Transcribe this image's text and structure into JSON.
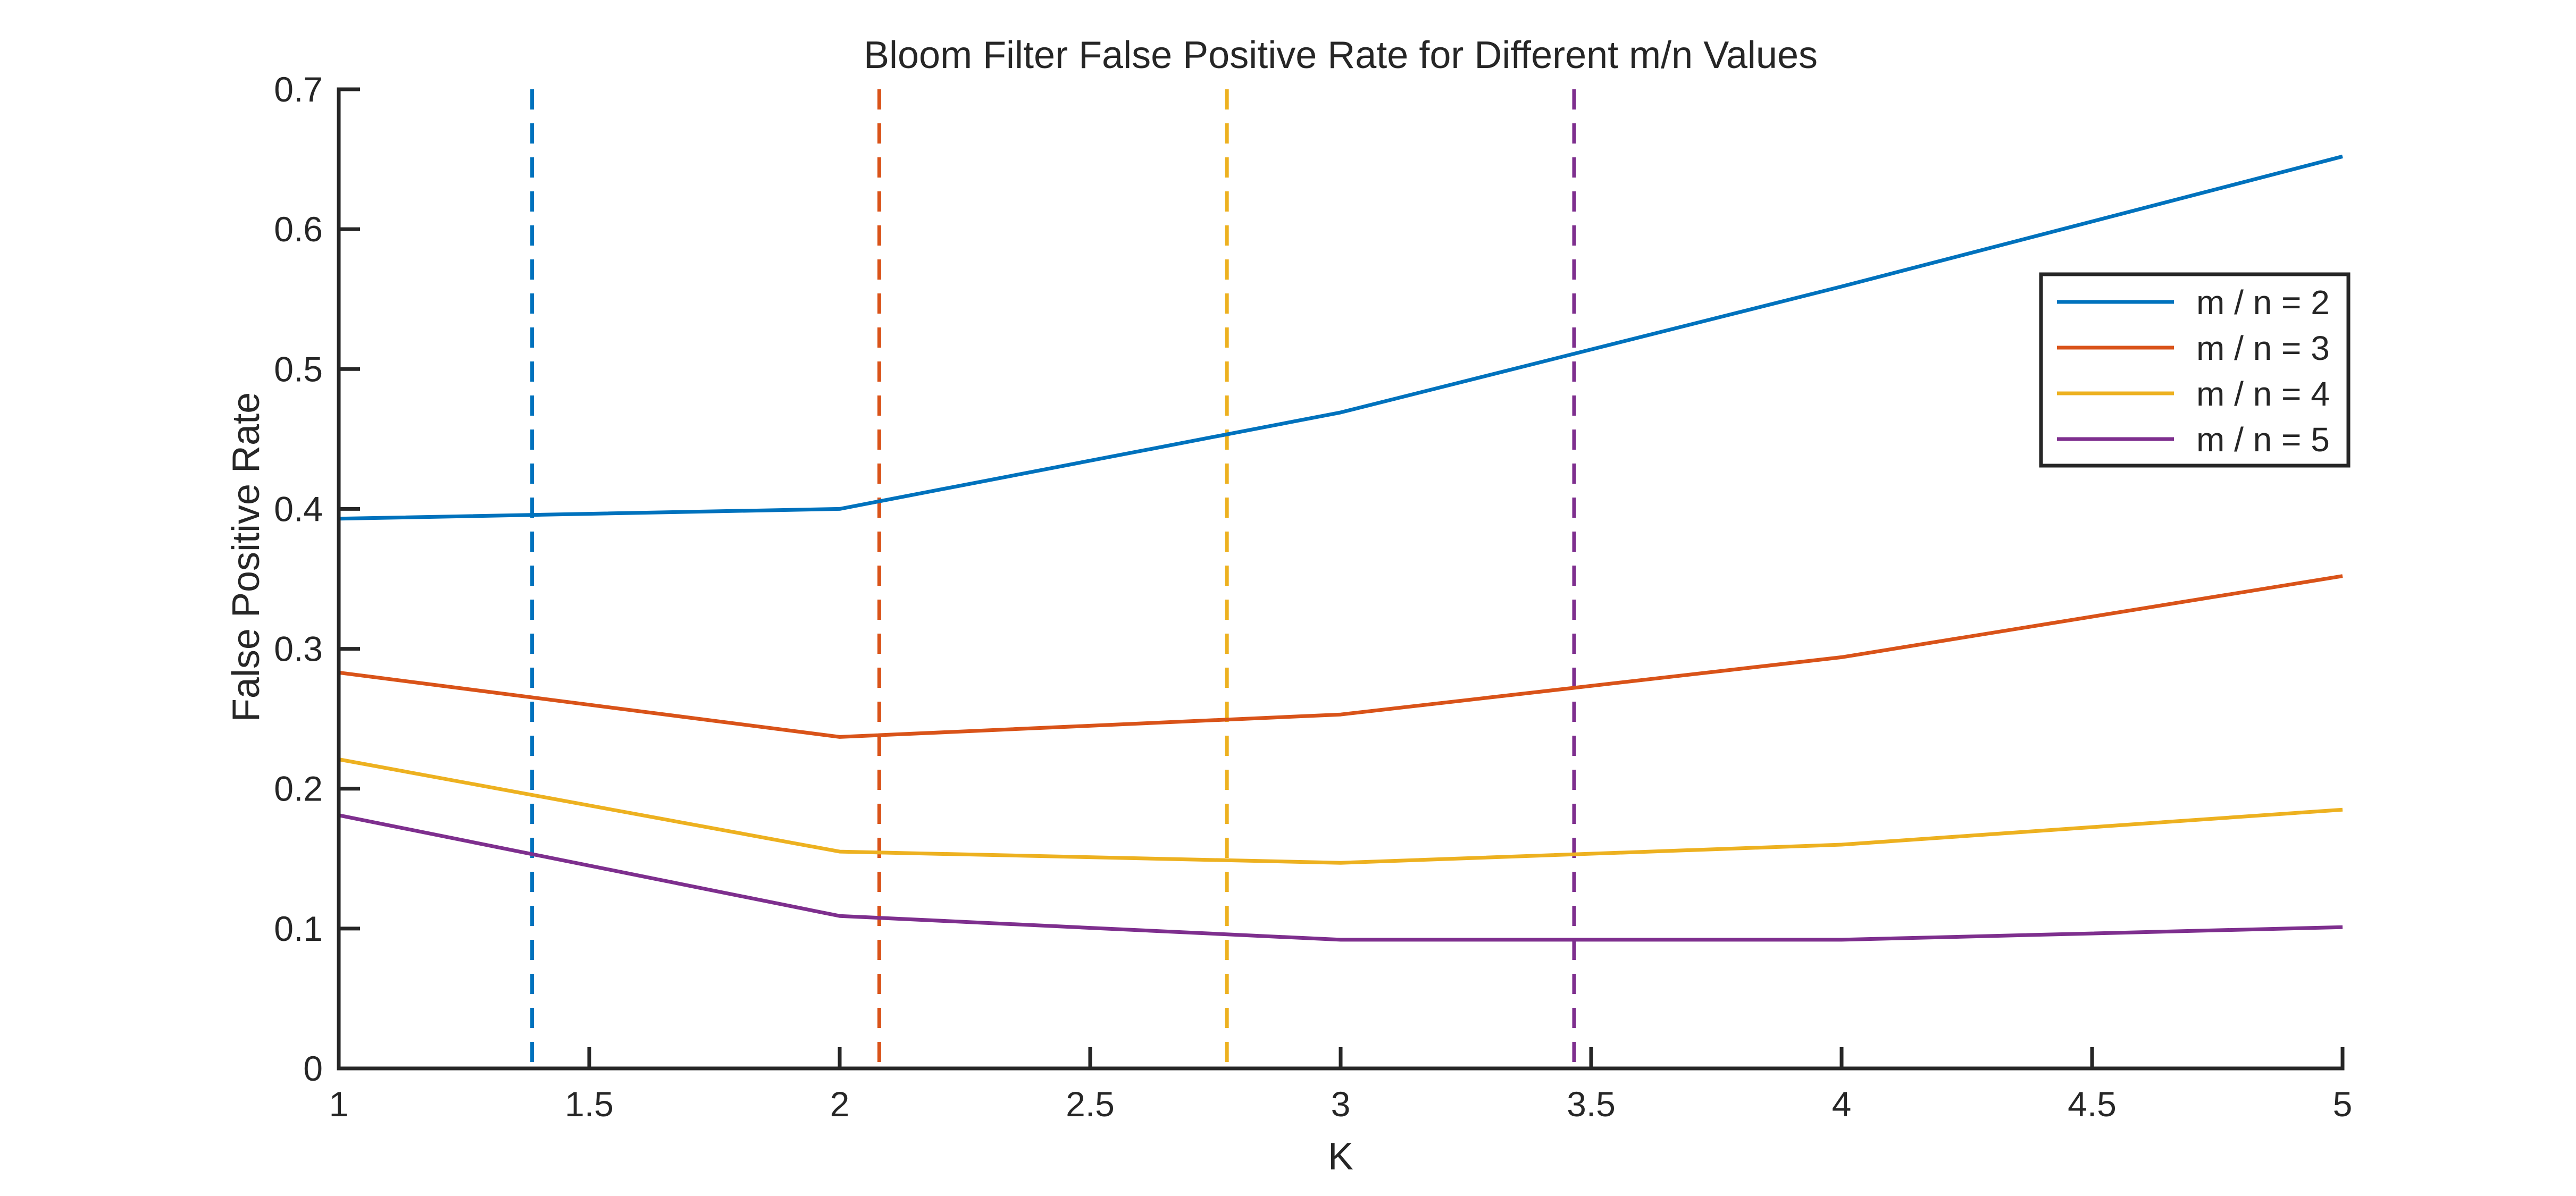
{
  "chart_data": {
    "type": "line",
    "title": "Bloom Filter False Positive Rate for Different m/n Values",
    "xlabel": "K",
    "ylabel": "False Positive Rate",
    "xlim": [
      1,
      5
    ],
    "ylim": [
      0,
      0.7
    ],
    "x_ticks": [
      1,
      1.5,
      2,
      2.5,
      3,
      3.5,
      4,
      4.5,
      5
    ],
    "y_ticks": [
      0,
      0.1,
      0.2,
      0.3,
      0.4,
      0.5,
      0.6,
      0.7
    ],
    "x_tick_labels": [
      "1",
      "1.5",
      "2",
      "2.5",
      "3",
      "3.5",
      "4",
      "4.5",
      "5"
    ],
    "y_tick_labels": [
      "0",
      "0.1",
      "0.2",
      "0.3",
      "0.4",
      "0.5",
      "0.6",
      "0.7"
    ],
    "grid": false,
    "legend_position": "top-right",
    "x": [
      1,
      2,
      3,
      4,
      5
    ],
    "series": [
      {
        "name": "m / n = 2",
        "color": "#0072BD",
        "values": [
          0.393,
          0.4,
          0.469,
          0.559,
          0.652
        ]
      },
      {
        "name": "m / n = 3",
        "color": "#D95319",
        "values": [
          0.283,
          0.237,
          0.253,
          0.294,
          0.352
        ]
      },
      {
        "name": "m / n = 4",
        "color": "#EDB120",
        "values": [
          0.221,
          0.155,
          0.147,
          0.16,
          0.185
        ]
      },
      {
        "name": "m / n = 5",
        "color": "#7E2F8E",
        "values": [
          0.181,
          0.109,
          0.092,
          0.092,
          0.101
        ]
      }
    ],
    "reference_lines": [
      {
        "orientation": "vertical",
        "style": "dashed",
        "x": 1.386,
        "color": "#0072BD"
      },
      {
        "orientation": "vertical",
        "style": "dashed",
        "x": 2.079,
        "color": "#D95319"
      },
      {
        "orientation": "vertical",
        "style": "dashed",
        "x": 2.773,
        "color": "#EDB120"
      },
      {
        "orientation": "vertical",
        "style": "dashed",
        "x": 3.466,
        "color": "#7E2F8E"
      }
    ]
  }
}
